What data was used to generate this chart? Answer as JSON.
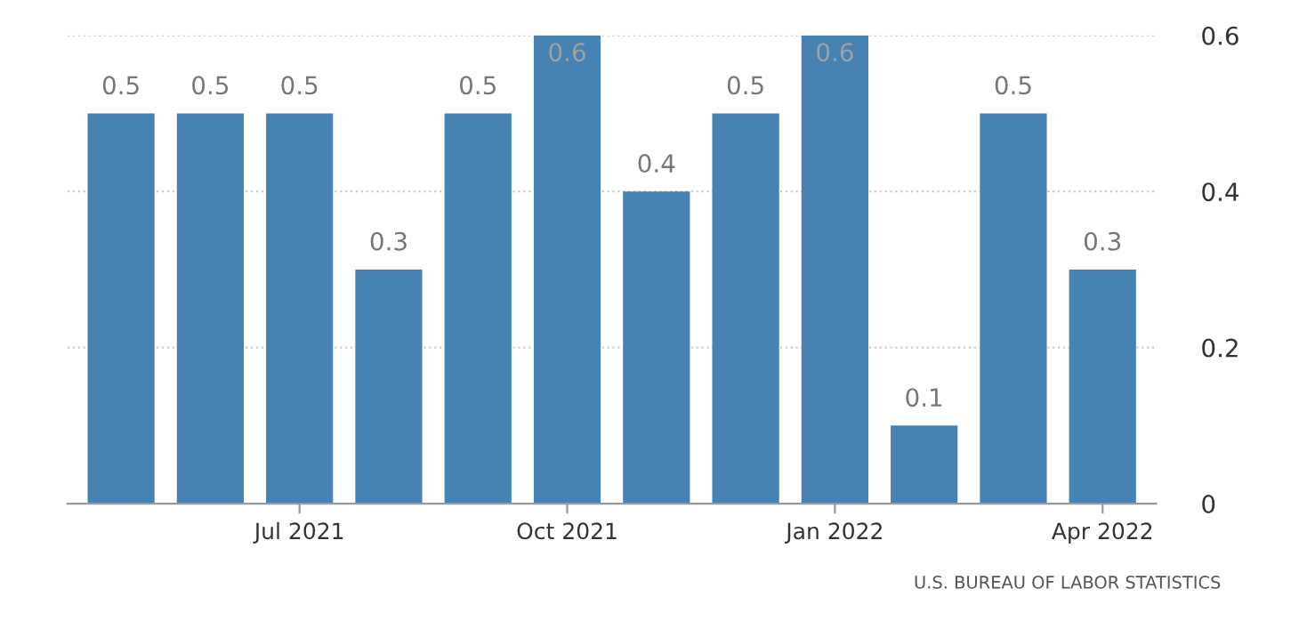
{
  "chart_data": {
    "type": "bar",
    "categories": [
      null,
      null,
      "Jul 2021",
      null,
      null,
      "Oct 2021",
      null,
      null,
      "Jan 2022",
      null,
      null,
      "Apr 2022"
    ],
    "values": [
      0.5,
      0.5,
      0.5,
      0.3,
      0.5,
      0.6,
      0.4,
      0.5,
      0.6,
      0.1,
      0.5,
      0.3
    ],
    "color": "#4682b4",
    "ylim": [
      0,
      0.6
    ],
    "yticks": [
      0,
      0.2,
      0.4,
      0.6
    ],
    "grid": "y",
    "data_labels": true,
    "annotations": [
      "U.S. BUREAU OF LABOR STATISTICS"
    ]
  }
}
